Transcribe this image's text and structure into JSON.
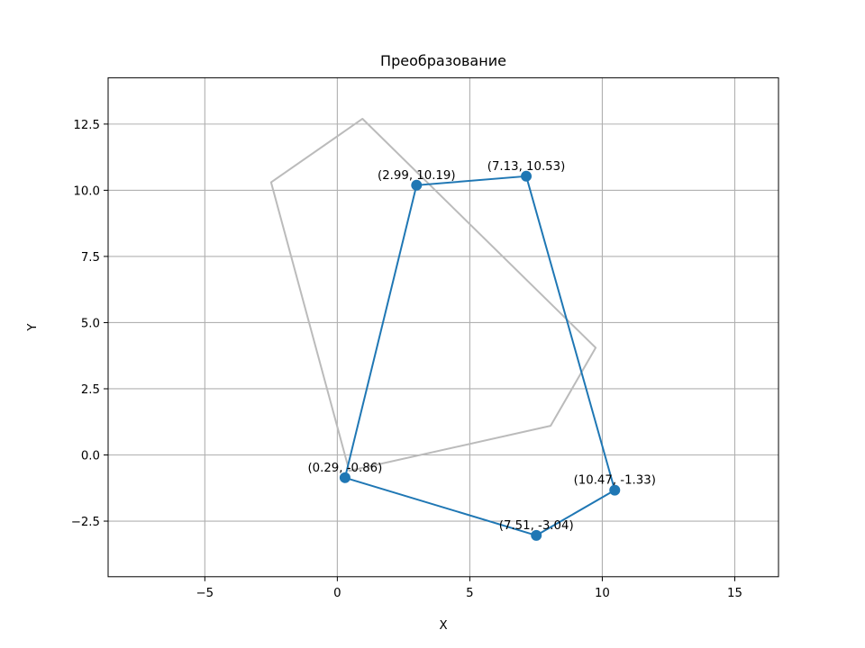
{
  "chart_data": {
    "type": "line",
    "title": "Преобразование",
    "xlabel": "X",
    "ylabel": "Y",
    "xlim": [
      -8.65,
      16.65
    ],
    "ylim": [
      -4.6,
      14.25
    ],
    "xticks": [
      -5,
      0,
      5,
      10,
      15
    ],
    "xtick_labels": [
      "−5",
      "0",
      "5",
      "10",
      "15"
    ],
    "yticks": [
      -2.5,
      0.0,
      2.5,
      5.0,
      7.5,
      10.0,
      12.5
    ],
    "ytick_labels": [
      "−2.5",
      "0.0",
      "2.5",
      "5.0",
      "7.5",
      "10.0",
      "12.5"
    ],
    "grid": true,
    "series": [
      {
        "role": "original",
        "color": "#bbbbbb",
        "closed": true,
        "markers": false,
        "points": [
          {
            "x": 0.95,
            "y": 12.7
          },
          {
            "x": 9.75,
            "y": 4.05
          },
          {
            "x": 8.05,
            "y": 1.1
          },
          {
            "x": 0.45,
            "y": -0.6
          },
          {
            "x": -2.5,
            "y": 10.3
          }
        ]
      },
      {
        "role": "transformed",
        "color": "#1f77b4",
        "closed": true,
        "markers": true,
        "points": [
          {
            "x": 2.99,
            "y": 10.19,
            "label": "(2.99, 10.19)"
          },
          {
            "x": 7.13,
            "y": 10.53,
            "label": "(7.13, 10.53)"
          },
          {
            "x": 10.47,
            "y": -1.33,
            "label": "(10.47, -1.33)"
          },
          {
            "x": 7.51,
            "y": -3.04,
            "label": "(7.51, -3.04)"
          },
          {
            "x": 0.29,
            "y": -0.86,
            "label": "(0.29, -0.86)"
          }
        ]
      }
    ]
  }
}
